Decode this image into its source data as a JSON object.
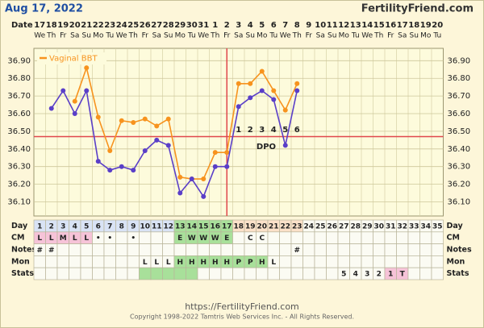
{
  "header": {
    "date": "Aug 17, 2022",
    "site": "FertilityFriend.com"
  },
  "chart_data": {
    "type": "line",
    "date_label": "Date",
    "dates": [
      17,
      18,
      19,
      20,
      21,
      22,
      23,
      24,
      25,
      26,
      27,
      28,
      29,
      30,
      31,
      1,
      2,
      3,
      4,
      5,
      6,
      7,
      8,
      9,
      10,
      11,
      12,
      13,
      14,
      15,
      16,
      17,
      18,
      19,
      20
    ],
    "weekdays": [
      "We",
      "Th",
      "Fr",
      "Sa",
      "Su",
      "Mo",
      "Tu",
      "We",
      "Th",
      "Fr",
      "Sa",
      "Su",
      "Mo",
      "Tu",
      "We",
      "Th",
      "Fr",
      "Sa",
      "Su",
      "Mo",
      "Tu",
      "We",
      "Th",
      "Fr",
      "Sa",
      "Su",
      "Mo",
      "Tu",
      "We",
      "Th",
      "Fr",
      "Sa",
      "Su",
      "Mo",
      "Tu"
    ],
    "categories": [
      1,
      2,
      3,
      4,
      5,
      6,
      7,
      8,
      9,
      10,
      11,
      12,
      13,
      14,
      15,
      16,
      17,
      18,
      19,
      20,
      21,
      22,
      23,
      24,
      25,
      26,
      27,
      28,
      29,
      30,
      31,
      32,
      33,
      34,
      35
    ],
    "ylim": [
      36.02,
      36.97
    ],
    "yticks": [
      {
        "value": 36.1,
        "label": "36.10"
      },
      {
        "value": 36.2,
        "label": "36.20"
      },
      {
        "value": 36.3,
        "label": "36.30"
      },
      {
        "value": 36.4,
        "label": "36.40"
      },
      {
        "value": 36.5,
        "label": "36.50"
      },
      {
        "value": 36.6,
        "label": "36.60"
      },
      {
        "value": 36.7,
        "label": "36.70"
      },
      {
        "value": 36.8,
        "label": "36.80"
      },
      {
        "value": 36.9,
        "label": "36.90"
      }
    ],
    "grid": true,
    "legend": "top-left",
    "series": [
      {
        "name": "Vaginal BBT",
        "color": "#f7931e",
        "values": [
          null,
          null,
          null,
          36.67,
          36.86,
          36.58,
          36.39,
          36.56,
          36.55,
          36.57,
          36.53,
          36.57,
          36.24,
          36.23,
          36.23,
          36.38,
          36.38,
          36.77,
          36.77,
          36.84,
          36.73,
          36.62,
          36.77,
          null,
          null,
          null,
          null,
          null,
          null,
          null,
          null,
          null,
          null,
          null,
          null
        ]
      },
      {
        "color": "#5a3fc8",
        "values": [
          null,
          36.63,
          36.73,
          36.6,
          36.73,
          36.33,
          36.28,
          36.3,
          36.28,
          36.39,
          36.45,
          36.42,
          36.15,
          36.23,
          36.13,
          36.3,
          36.3,
          36.64,
          36.69,
          36.73,
          36.68,
          36.42,
          36.73,
          null,
          null,
          null,
          null,
          null,
          null,
          null,
          null,
          null,
          null,
          null,
          null
        ]
      }
    ],
    "coverline": 36.47,
    "coverline_color": "#e0474c",
    "ovulation_day": 17,
    "dpo_label": "DPO",
    "dpo": [
      null,
      null,
      null,
      null,
      null,
      null,
      null,
      null,
      null,
      null,
      null,
      null,
      null,
      null,
      null,
      null,
      null,
      1,
      2,
      3,
      4,
      5,
      6,
      null,
      null,
      null,
      null,
      null,
      null,
      null,
      null,
      null,
      null,
      null,
      null
    ]
  },
  "table": {
    "rows": [
      {
        "label": "Day",
        "cells": [
          1,
          2,
          3,
          4,
          5,
          6,
          7,
          8,
          9,
          10,
          11,
          12,
          13,
          14,
          15,
          16,
          17,
          18,
          19,
          20,
          21,
          22,
          23,
          24,
          25,
          26,
          27,
          28,
          29,
          30,
          31,
          32,
          33,
          34,
          35
        ],
        "fills": [
          {
            "from": 1,
            "to": 12,
            "color": "#d9e3f5"
          },
          {
            "from": 13,
            "to": 17,
            "color": "#a8e09a"
          },
          {
            "from": 18,
            "to": 23,
            "color": "#fbe1c9"
          }
        ]
      },
      {
        "label": "CM",
        "cells": [
          "L",
          "L",
          "M",
          "L",
          "L",
          "•",
          "•",
          null,
          "•",
          null,
          null,
          null,
          "E",
          "W",
          "W",
          "W",
          "E",
          null,
          "C",
          "C",
          null,
          null,
          null,
          null,
          null,
          null,
          null,
          null,
          null,
          null,
          null,
          null,
          null,
          null,
          null
        ],
        "fills": [
          {
            "from": 1,
            "to": 5,
            "color": "#f6c3d8"
          },
          {
            "from": 13,
            "to": 17,
            "color": "#a8e09a"
          }
        ]
      },
      {
        "label": "Notes",
        "cells": [
          "#",
          "#",
          null,
          null,
          null,
          null,
          null,
          null,
          null,
          null,
          null,
          null,
          null,
          null,
          null,
          null,
          null,
          null,
          null,
          null,
          null,
          null,
          "#",
          null,
          null,
          null,
          null,
          null,
          null,
          null,
          null,
          null,
          null,
          null,
          null
        ],
        "fills": []
      },
      {
        "label": "Mon",
        "cells": [
          null,
          null,
          null,
          null,
          null,
          null,
          null,
          null,
          null,
          "L",
          "L",
          "L",
          "H",
          "H",
          "H",
          "H",
          "H",
          "P",
          "P",
          "H",
          "L",
          null,
          null,
          null,
          null,
          null,
          null,
          null,
          null,
          null,
          null,
          null,
          null,
          null,
          null
        ],
        "fills": [
          {
            "from": 13,
            "to": 20,
            "color": "#a8e09a"
          }
        ]
      },
      {
        "label": "Stats",
        "cells": [
          null,
          null,
          null,
          null,
          null,
          null,
          null,
          null,
          null,
          null,
          null,
          null,
          null,
          null,
          null,
          null,
          null,
          null,
          null,
          null,
          null,
          null,
          null,
          null,
          null,
          null,
          "5",
          "4",
          "3",
          "2",
          "1",
          "T",
          null,
          null,
          null
        ],
        "fills": [
          {
            "from": 10,
            "to": 14,
            "color": "#a8e09a"
          },
          {
            "from": 31,
            "to": 32,
            "color": "#f6c3d8"
          }
        ]
      }
    ]
  },
  "footer": {
    "url": "https://FertilityFriend.com",
    "copyright": "Copyright 1998-2022 Tamtris Web Services Inc. - All Rights Reserved."
  }
}
